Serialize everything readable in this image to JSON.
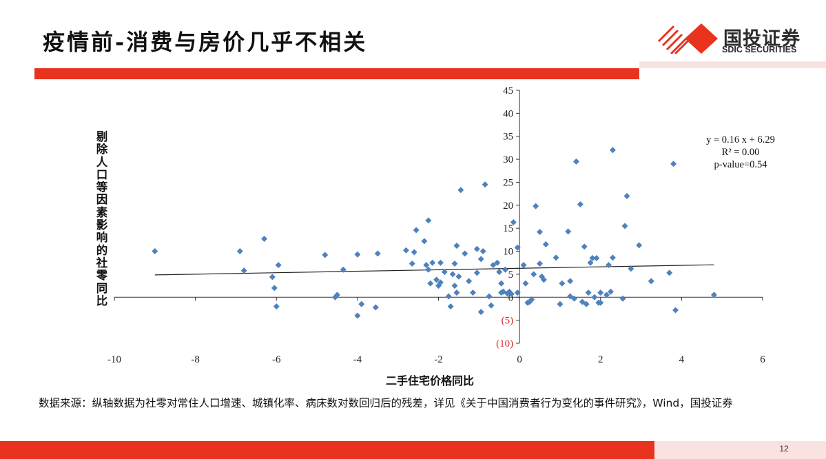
{
  "slide": {
    "title": "疫情前-消费与房价几乎不相关",
    "page_number": "12"
  },
  "logo": {
    "name_cn": "国投证券",
    "name_en": "SDIC SECURITIES"
  },
  "source_note": "数据来源：纵轴数据为社零对常住人口增速、城镇化率、病床数对数回归后的残差，详见《关于中国消费者行为变化的事件研究》，Wind，国投证券",
  "colors": {
    "accent_red": "#e8331f",
    "point_blue": "#4f81bd",
    "negative_tick_red": "#d42a2a"
  },
  "chart_data": {
    "type": "scatter",
    "title": "",
    "xlabel": "二手住宅价格同比",
    "ylabel": "剔除人口等因素影响的社零同比",
    "xlim": [
      -10,
      6
    ],
    "ylim": [
      -10,
      45
    ],
    "x_ticks": [
      -10,
      -8,
      -6,
      -4,
      -2,
      0,
      2,
      4,
      6
    ],
    "x_tick_labels": [
      "-10",
      "-8",
      "-6",
      "-4",
      "-2",
      "0",
      "2",
      "4",
      "6"
    ],
    "y_ticks": [
      45,
      40,
      35,
      30,
      25,
      20,
      15,
      10,
      5,
      0,
      -5,
      -10
    ],
    "y_tick_labels": [
      "45",
      "40",
      "35",
      "30",
      "25",
      "20",
      "15",
      "10",
      "5",
      "0",
      "(5)",
      "(10)"
    ],
    "trendline": {
      "slope": 0.16,
      "intercept": 6.29,
      "x_range": [
        -9,
        4.8
      ]
    },
    "annotation": [
      "y = 0.16 x + 6.29",
      "R² = 0.00",
      "p-value=0.54"
    ],
    "points": [
      [
        -9.0,
        10.0
      ],
      [
        -6.9,
        10.0
      ],
      [
        -6.8,
        5.8
      ],
      [
        -6.3,
        12.7
      ],
      [
        -6.1,
        4.4
      ],
      [
        -6.05,
        2.0
      ],
      [
        -6.0,
        -2.0
      ],
      [
        -5.95,
        7.0
      ],
      [
        -4.8,
        9.2
      ],
      [
        -4.55,
        0.0
      ],
      [
        -4.5,
        0.5
      ],
      [
        -4.35,
        6.0
      ],
      [
        -4.0,
        9.3
      ],
      [
        -4.0,
        -4.0
      ],
      [
        -3.9,
        -1.5
      ],
      [
        -3.55,
        -2.2
      ],
      [
        -3.5,
        9.5
      ],
      [
        -2.8,
        10.2
      ],
      [
        -2.6,
        9.8
      ],
      [
        -2.55,
        14.6
      ],
      [
        -2.65,
        7.3
      ],
      [
        -2.35,
        12.2
      ],
      [
        -2.3,
        7.0
      ],
      [
        -2.25,
        6.0
      ],
      [
        -2.25,
        16.7
      ],
      [
        -2.2,
        3.0
      ],
      [
        -2.15,
        7.5
      ],
      [
        -2.05,
        3.8
      ],
      [
        -2.0,
        2.5
      ],
      [
        -1.95,
        7.5
      ],
      [
        -1.95,
        3.2
      ],
      [
        -1.85,
        5.5
      ],
      [
        -1.75,
        0.2
      ],
      [
        -1.7,
        -2.0
      ],
      [
        -1.65,
        5.0
      ],
      [
        -1.6,
        2.5
      ],
      [
        -1.6,
        7.3
      ],
      [
        -1.55,
        11.2
      ],
      [
        -1.5,
        4.5
      ],
      [
        -1.55,
        1.0
      ],
      [
        -1.45,
        23.3
      ],
      [
        -1.35,
        9.5
      ],
      [
        -1.25,
        3.5
      ],
      [
        -1.15,
        1.0
      ],
      [
        -1.05,
        5.3
      ],
      [
        -1.05,
        10.5
      ],
      [
        -0.95,
        8.3
      ],
      [
        -0.9,
        10.0
      ],
      [
        -0.95,
        -3.2
      ],
      [
        -0.85,
        24.5
      ],
      [
        -0.75,
        0.2
      ],
      [
        -0.7,
        -1.8
      ],
      [
        -0.65,
        7.0
      ],
      [
        -0.55,
        7.5
      ],
      [
        -0.5,
        5.5
      ],
      [
        -0.45,
        1.0
      ],
      [
        -0.45,
        3.0
      ],
      [
        -0.4,
        1.2
      ],
      [
        -0.35,
        6.0
      ],
      [
        -0.3,
        0.8
      ],
      [
        -0.25,
        1.2
      ],
      [
        -0.2,
        0.7
      ],
      [
        -0.15,
        16.3
      ],
      [
        -0.05,
        10.8
      ],
      [
        -0.05,
        1.0
      ],
      [
        0.1,
        7.0
      ],
      [
        0.15,
        3.0
      ],
      [
        0.2,
        -1.2
      ],
      [
        0.25,
        -1.0
      ],
      [
        0.3,
        -0.5
      ],
      [
        0.35,
        5.0
      ],
      [
        0.4,
        19.8
      ],
      [
        0.5,
        14.2
      ],
      [
        0.5,
        7.3
      ],
      [
        0.55,
        4.5
      ],
      [
        0.6,
        3.8
      ],
      [
        0.65,
        11.5
      ],
      [
        0.9,
        8.6
      ],
      [
        1.0,
        -1.5
      ],
      [
        1.05,
        3.0
      ],
      [
        1.2,
        14.3
      ],
      [
        1.25,
        3.5
      ],
      [
        1.25,
        0.2
      ],
      [
        1.35,
        -0.3
      ],
      [
        1.4,
        29.5
      ],
      [
        1.5,
        20.2
      ],
      [
        1.55,
        -1.0
      ],
      [
        1.6,
        11.0
      ],
      [
        1.65,
        -1.5
      ],
      [
        1.7,
        1.0
      ],
      [
        1.75,
        7.5
      ],
      [
        1.8,
        8.5
      ],
      [
        1.85,
        0.0
      ],
      [
        1.9,
        8.5
      ],
      [
        1.95,
        -1.2
      ],
      [
        2.0,
        1.0
      ],
      [
        2.0,
        -1.2
      ],
      [
        2.15,
        0.5
      ],
      [
        2.2,
        7.0
      ],
      [
        2.25,
        1.2
      ],
      [
        2.3,
        32.0
      ],
      [
        2.3,
        8.6
      ],
      [
        2.55,
        -0.3
      ],
      [
        2.6,
        15.5
      ],
      [
        2.65,
        22.0
      ],
      [
        2.75,
        6.2
      ],
      [
        2.95,
        11.3
      ],
      [
        3.25,
        3.5
      ],
      [
        3.7,
        5.3
      ],
      [
        3.8,
        29.0
      ],
      [
        3.85,
        -2.8
      ],
      [
        4.8,
        0.5
      ]
    ]
  }
}
